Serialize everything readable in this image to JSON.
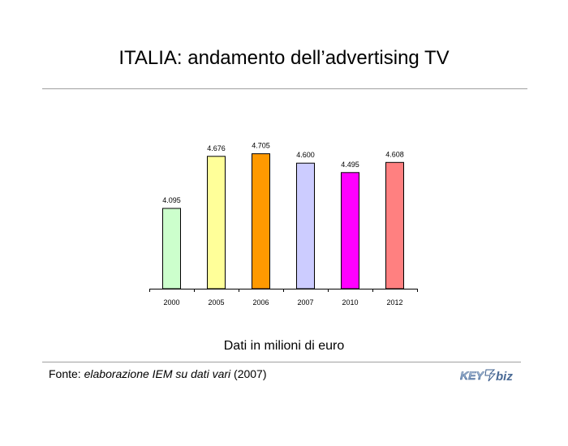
{
  "header": {
    "title": "ITALIA: andamento dell’advertising TV"
  },
  "chart_data": {
    "type": "bar",
    "categories": [
      "2000",
      "2005",
      "2006",
      "2007",
      "2010",
      "2012"
    ],
    "values": [
      4095,
      4676,
      4705,
      4600,
      4495,
      4608
    ],
    "value_labels": [
      "4.095",
      "4.676",
      "4.705",
      "4.600",
      "4.495",
      "4.608"
    ],
    "colors": [
      "#ccffcc",
      "#ffff99",
      "#ff9900",
      "#ccccff",
      "#ff00ff",
      "#ff8080"
    ],
    "ylim": [
      3200,
      4900
    ],
    "grid": false,
    "legend": "none",
    "title": "ITALIA: andamento dell’advertising TV",
    "subtitle": "Dati in milioni di euro"
  },
  "footer": {
    "source_prefix": "Fonte: ",
    "source_italic": "elaborazione IEM su dati vari",
    "source_suffix": " (2007)",
    "logo_text": "KEY4biz",
    "logo_icon": "key4biz-logo"
  }
}
